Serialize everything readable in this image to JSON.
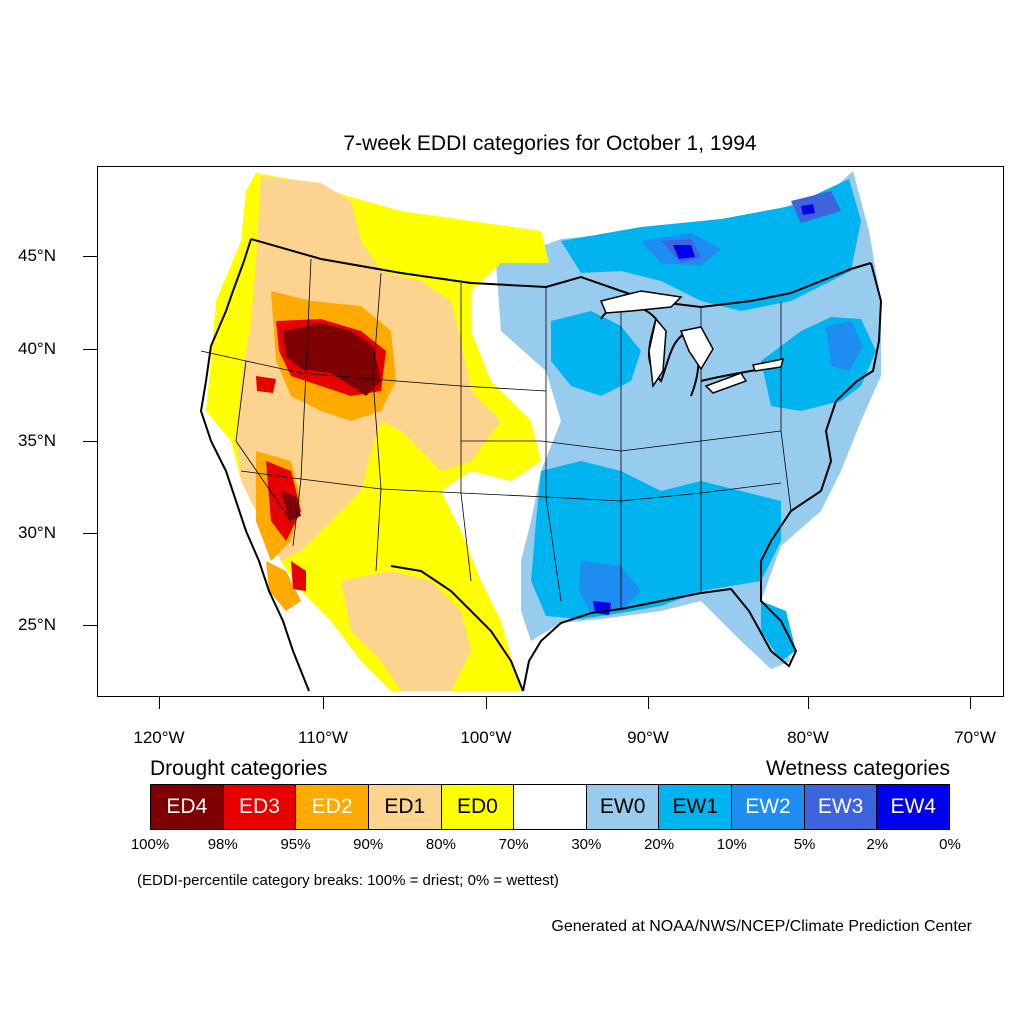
{
  "title": "7-week EDDI categories for October 1, 1994",
  "axes": {
    "latitudes": [
      "45°N",
      "40°N",
      "35°N",
      "30°N",
      "25°N"
    ],
    "longitudes": [
      "120°W",
      "110°W",
      "100°W",
      "90°W",
      "80°W",
      "70°W"
    ]
  },
  "legend": {
    "drought_heading": "Drought categories",
    "wetness_heading": "Wetness categories",
    "categories": [
      {
        "label": "ED4",
        "color": "#7f0000",
        "text_color": "#ffffff"
      },
      {
        "label": "ED3",
        "color": "#e60000",
        "text_color": "#ffffff"
      },
      {
        "label": "ED2",
        "color": "#ffaa00",
        "text_color": "#ffffff"
      },
      {
        "label": "ED1",
        "color": "#fcd38f",
        "text_color": "#000000"
      },
      {
        "label": "ED0",
        "color": "#ffff00",
        "text_color": "#000000"
      },
      {
        "label": "",
        "color": "#ffffff",
        "text_color": "#000000"
      },
      {
        "label": "EW0",
        "color": "#98ccee",
        "text_color": "#000000"
      },
      {
        "label": "EW1",
        "color": "#00b4f0",
        "text_color": "#000000"
      },
      {
        "label": "EW2",
        "color": "#1e8cf0",
        "text_color": "#ffffff"
      },
      {
        "label": "EW3",
        "color": "#3c64dc",
        "text_color": "#ffffff"
      },
      {
        "label": "EW4",
        "color": "#0000ee",
        "text_color": "#ffffff"
      }
    ],
    "percent_breaks": [
      "100%",
      "98%",
      "95%",
      "90%",
      "80%",
      "70%",
      "30%",
      "20%",
      "10%",
      "5%",
      "2%",
      "0%"
    ],
    "note": "(EDDI-percentile category breaks: 100% = driest; 0% = wettest)"
  },
  "credit": "Generated at NOAA/NWS/NCEP/Climate Prediction Center",
  "colors": {
    "ed4": "#7f0000",
    "ed3": "#e60000",
    "ed2": "#ffaa00",
    "ed1": "#fcd38f",
    "ed0": "#ffff00",
    "ew0": "#98ccee",
    "ew1": "#00b4f0",
    "ew2": "#1e8cf0",
    "ew3": "#3c64dc",
    "ew4": "#0000ee"
  }
}
